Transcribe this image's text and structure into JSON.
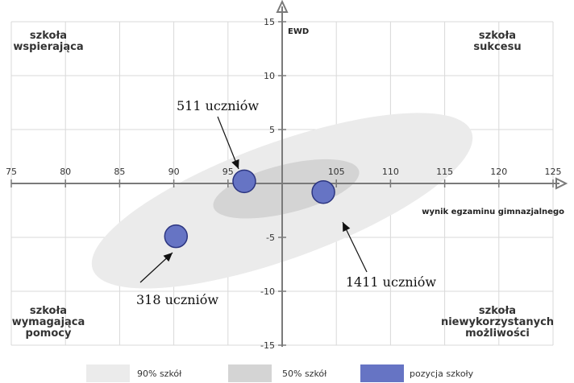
{
  "chart_data": {
    "type": "scatter",
    "xlabel": "wynik egzaminu gimnazjalnego",
    "ylabel": "EWD",
    "xlim": [
      75,
      125
    ],
    "ylim": [
      -15,
      15
    ],
    "x_ticks": [
      75,
      80,
      85,
      90,
      95,
      100,
      105,
      110,
      115,
      120,
      125
    ],
    "y_ticks": [
      -15,
      -10,
      -5,
      0,
      5,
      10,
      15
    ],
    "grid": true,
    "points": [
      {
        "x": 96.5,
        "y": 0.2,
        "label": "511 uczniów"
      },
      {
        "x": 103.8,
        "y": -0.8,
        "label": "1411 uczniów"
      },
      {
        "x": 90.2,
        "y": -4.9,
        "label": "318 uczniów"
      }
    ],
    "regions": [
      {
        "name": "90% szkół",
        "center_x": 100,
        "center_y": -1.5,
        "color": "#ebebeb"
      },
      {
        "name": "50% szkół",
        "center_x": 100,
        "center_y": -0.5,
        "color": "#d4d4d4"
      }
    ],
    "quadrant_labels": {
      "top_left": [
        "szkoła",
        "wspierająca"
      ],
      "top_right": [
        "szkoła",
        "sukcesu"
      ],
      "bottom_left": [
        "szkoła",
        "wymagająca",
        "pomocy"
      ],
      "bottom_right": [
        "szkoła",
        "niewykorzystanych",
        "możliwości"
      ]
    },
    "legend": [
      {
        "label": "90% szkół",
        "color": "#ebebeb"
      },
      {
        "label": "50% szkół",
        "color": "#d4d4d4"
      },
      {
        "label": "pozycja szkoły",
        "color": "#6674c4"
      }
    ],
    "point_color": "#6674c4",
    "legend_position": "bottom"
  }
}
